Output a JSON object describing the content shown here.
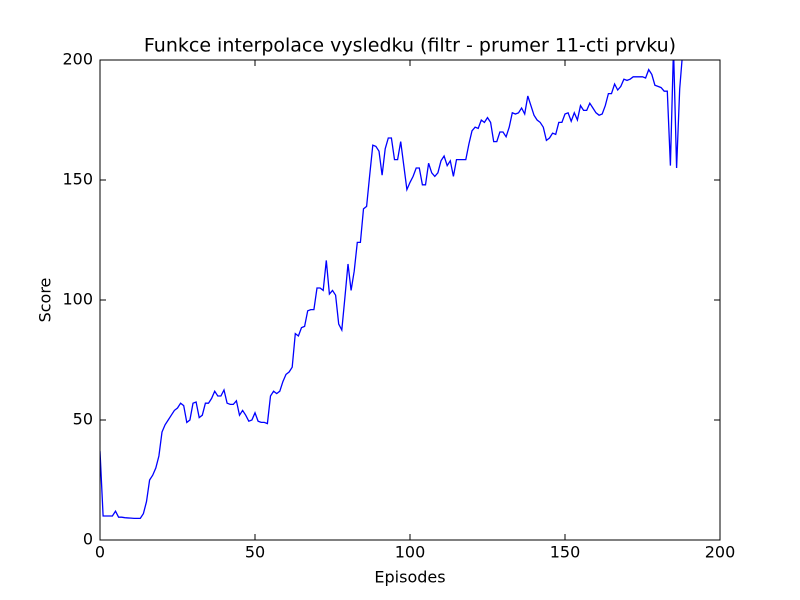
{
  "chart_data": {
    "type": "line",
    "title": "Funkce interpolace vysledku  (filtr - prumer 11-cti prvku)",
    "xlabel": "Episodes",
    "ylabel": "Score",
    "color": "#0000ff",
    "xlim": [
      0,
      200
    ],
    "ylim": [
      0,
      200
    ],
    "xticks": [
      0,
      50,
      100,
      150,
      200
    ],
    "yticks": [
      0,
      50,
      100,
      150,
      200
    ],
    "x": [
      0,
      1,
      2,
      3,
      4,
      5,
      6,
      7,
      8,
      9,
      10,
      11,
      12,
      13,
      14,
      15,
      16,
      17,
      18,
      19,
      20,
      21,
      22,
      23,
      24,
      25,
      26,
      27,
      28,
      29,
      30,
      31,
      32,
      33,
      34,
      35,
      36,
      37,
      38,
      39,
      40,
      41,
      42,
      43,
      44,
      45,
      46,
      47,
      48,
      49,
      50,
      51,
      52,
      53,
      54,
      55,
      56,
      57,
      58,
      59,
      60,
      61,
      62,
      63,
      64,
      65,
      66,
      67,
      68,
      69,
      70,
      71,
      72,
      73,
      74,
      75,
      76,
      77,
      78,
      79,
      80,
      81,
      82,
      83,
      84,
      85,
      86,
      87,
      88,
      89,
      90,
      91,
      92,
      93,
      94,
      95,
      96,
      97,
      98,
      99,
      100,
      101,
      102,
      103,
      104,
      105,
      106,
      107,
      108,
      109,
      110,
      111,
      112,
      113,
      114,
      115,
      116,
      117,
      118,
      119,
      120,
      121,
      122,
      123,
      124,
      125,
      126,
      127,
      128,
      129,
      130,
      131,
      132,
      133,
      134,
      135,
      136,
      137,
      138,
      139,
      140,
      141,
      142,
      143,
      144,
      145,
      146,
      147,
      148,
      149,
      150,
      151,
      152,
      153,
      154,
      155,
      156,
      157,
      158,
      159,
      160,
      161,
      162,
      163,
      164,
      165,
      166,
      167,
      168,
      169,
      170,
      171,
      172,
      173,
      174,
      175,
      176,
      177,
      178,
      179,
      180,
      181,
      182,
      183,
      184,
      185,
      186,
      187,
      188
    ],
    "values": [
      37,
      10,
      10,
      10,
      10,
      12,
      9.5,
      9.5,
      9.3,
      9.2,
      9.1,
      9,
      9,
      9,
      11,
      16,
      25,
      27,
      30,
      35,
      45,
      48,
      50,
      52,
      54,
      55,
      57,
      56,
      49,
      50,
      57,
      57.5,
      51,
      52,
      57,
      57,
      59,
      62,
      60,
      60,
      62.5,
      57,
      56.5,
      56.5,
      58,
      52,
      54,
      52,
      49.5,
      50,
      53,
      49.5,
      49,
      49,
      48.5,
      60,
      62,
      61,
      62,
      66,
      69,
      70,
      72,
      86,
      85,
      88.5,
      89,
      95.5,
      96,
      96,
      105,
      105,
      104,
      116.5,
      102.5,
      104,
      102,
      90,
      87.5,
      101,
      115,
      104,
      112,
      124,
      124,
      138,
      139,
      152,
      164.5,
      164,
      162,
      152,
      163,
      167.5,
      167.5,
      158.5,
      158.5,
      166,
      156,
      146,
      149,
      151.5,
      155,
      155,
      148,
      148,
      157,
      153,
      151.5,
      153,
      158,
      160,
      156,
      158,
      151.5,
      158.5,
      158.5,
      158.5,
      158.5,
      165,
      170.5,
      172,
      171.5,
      175,
      174,
      176,
      174,
      166,
      166,
      170,
      170,
      168,
      172,
      178,
      177.5,
      178,
      180,
      177.5,
      185,
      181,
      177,
      175,
      174,
      172,
      166.5,
      167.5,
      169.5,
      169,
      174,
      174,
      177.5,
      178,
      174.5,
      178,
      175,
      181,
      179,
      179,
      182,
      180,
      178,
      177,
      177.5,
      181,
      186,
      186,
      190,
      187.5,
      189,
      192,
      191.5,
      192,
      193,
      193,
      193,
      193,
      192.5,
      196,
      194,
      189.5,
      189,
      188.5,
      187,
      187,
      156,
      205,
      155,
      188,
      204
    ]
  }
}
